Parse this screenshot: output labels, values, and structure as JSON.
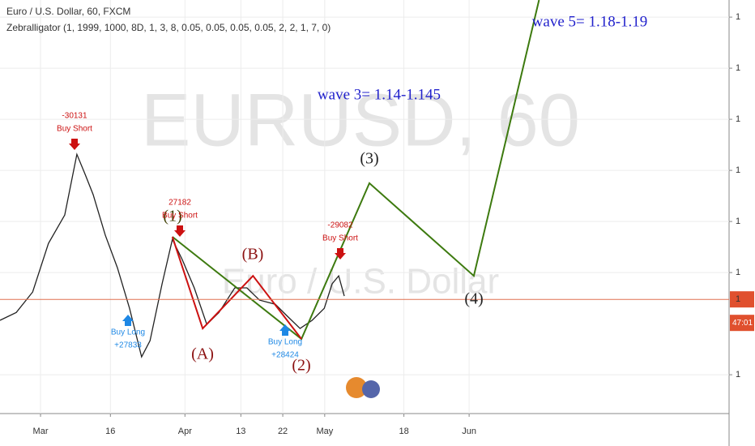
{
  "chart_data": {
    "type": "line",
    "header": "Euro / U.S. Dollar, 60, FXCM",
    "indicator": "Zebralligator (1, 1999, 1000, 8D, 1, 3, 8, 0.05, 0.05, 0.05, 0.05, 2, 2, 1, 7, 0)",
    "watermark": "EURUSD, 60",
    "watermark_sub": "Euro / U.S. Dollar",
    "xlim": [
      -8.7,
      147.8
    ],
    "xticks": [
      {
        "value": 0,
        "label": "Mar"
      },
      {
        "value": 15,
        "label": "16"
      },
      {
        "value": 31,
        "label": "Apr"
      },
      {
        "value": 43,
        "label": "13"
      },
      {
        "value": 52,
        "label": "22"
      },
      {
        "value": 61,
        "label": "May"
      },
      {
        "value": 78,
        "label": "18"
      },
      {
        "value": 92,
        "label": "Jun"
      }
    ],
    "ylim": [
      1.0448,
      1.2067
    ],
    "yticks": [
      {
        "value": 1.06,
        "label": "1"
      },
      {
        "value": 1.1,
        "label": "1"
      },
      {
        "value": 1.12,
        "label": "1"
      },
      {
        "value": 1.14,
        "label": "1"
      },
      {
        "value": 1.16,
        "label": "1"
      },
      {
        "value": 1.18,
        "label": "1"
      },
      {
        "value": 1.2,
        "label": "1"
      }
    ],
    "grid": true,
    "price_line": {
      "value": 1.0895,
      "label": "1"
    },
    "countdown": "47:01",
    "series": [
      {
        "color": "#222222",
        "x": [
          -8.7,
          -5.2,
          -1.7,
          1.7,
          5.2,
          7.8,
          9.6,
          11.3,
          13.9,
          16.5,
          19.1,
          21.7,
          23.5,
          26.1,
          28.3,
          30.4,
          33.0,
          35.7,
          38.3,
          41.7,
          44.3,
          47.0,
          50.4,
          53.0,
          55.7,
          58.3,
          60.9,
          62.6,
          64.0,
          65.2
        ],
        "values": [
          1.0813,
          1.0844,
          1.0924,
          1.1114,
          1.1225,
          1.1463,
          1.1384,
          1.1305,
          1.1146,
          1.1019,
          1.086,
          1.067,
          1.0733,
          1.0956,
          1.113,
          1.1051,
          1.094,
          1.0797,
          1.0844,
          1.094,
          1.094,
          1.0892,
          1.0876,
          1.0829,
          1.0781,
          1.0813,
          1.086,
          1.0956,
          1.0987,
          1.0908
        ]
      },
      {
        "color": "#3d7a0f",
        "x": [
          28.3,
          56.0,
          70.6,
          93.0,
          107.0
        ],
        "values": [
          1.114,
          1.074,
          1.135,
          1.0987,
          1.2067
        ]
      },
      {
        "color": "#cc1111",
        "x": [
          28.3,
          34.8,
          45.6,
          56.0
        ],
        "values": [
          1.114,
          1.0781,
          1.0987,
          1.074
        ]
      }
    ],
    "wave_labels": [
      "(1)",
      "(A)",
      "(B)",
      "(2)",
      "(3)",
      "(4)"
    ],
    "notes": [
      "wave 3= 1.14-1.145",
      "wave 5= 1.18-1.19"
    ],
    "signals": [
      [
        "-30131",
        "Buy Short"
      ],
      [
        "27182",
        "Buy Short"
      ],
      [
        "-29082",
        "Buy Short"
      ],
      [
        "Buy Long",
        "+27833"
      ],
      [
        "Buy Long",
        "+28424"
      ]
    ]
  }
}
